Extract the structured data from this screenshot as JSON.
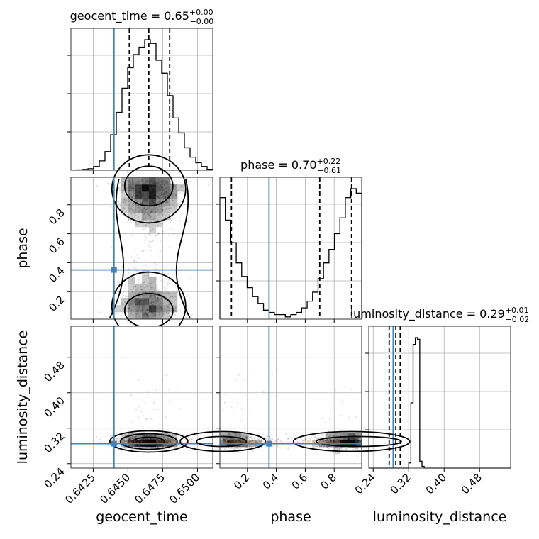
{
  "chart_data": {
    "type": "corner",
    "parameters": [
      "geocent_time",
      "phase",
      "luminosity_distance"
    ],
    "truths": {
      "geocent_time": 0.644,
      "phase": 0.35,
      "luminosity_distance": 0.285
    },
    "titles": [
      {
        "param": "geocent_time",
        "text": "geocent_time = 0.65",
        "sup": "+0.00",
        "sub": "−0.00"
      },
      {
        "param": "phase",
        "text": "phase = 0.70",
        "sup": "+0.22",
        "sub": "−0.61"
      },
      {
        "param": "luminosity_distance",
        "text": "luminosity_distance = 0.29",
        "sup": "+0.01",
        "sub": "−0.02"
      }
    ],
    "ranges": {
      "geocent_time": [
        0.6409,
        0.6511
      ],
      "phase": [
        0.01,
        0.99
      ],
      "luminosity_distance": [
        0.23,
        0.55
      ]
    },
    "ticks": {
      "geocent_time": [
        "0.6425",
        "0.6450",
        "0.6475",
        "0.6500"
      ],
      "phase": [
        "0.2",
        "0.4",
        "0.6",
        "0.8"
      ],
      "luminosity_distance": [
        "0.24",
        "0.32",
        "0.40",
        "0.48"
      ]
    },
    "quantiles": {
      "geocent_time": [
        0.6451,
        0.6465,
        0.648
      ],
      "phase": [
        0.09,
        0.7,
        0.92
      ],
      "luminosity_distance": [
        0.276,
        0.291,
        0.301
      ]
    },
    "hist1d": {
      "geocent_time": [
        0.1,
        0.2,
        0.4,
        0.8,
        2,
        5,
        10,
        19,
        31,
        44,
        55,
        62,
        66,
        70,
        68,
        59,
        52,
        40,
        28,
        20,
        12,
        7,
        4,
        2,
        0.5
      ],
      "phase": [
        54,
        44,
        34,
        25,
        19,
        14,
        10,
        7,
        4,
        3,
        2,
        2,
        1,
        2,
        3,
        5,
        8,
        12,
        18,
        25,
        31,
        38,
        45,
        54,
        58,
        56
      ],
      "luminosity_distance": [
        0,
        0,
        0,
        0,
        0,
        0,
        0,
        0,
        0,
        0,
        0,
        0,
        0,
        0,
        0,
        0,
        0,
        0,
        3,
        38,
        72,
        76,
        75,
        4,
        1,
        0,
        0,
        0,
        0,
        0,
        0,
        0,
        0,
        0,
        0,
        0,
        0,
        0,
        0,
        0,
        0,
        0,
        0,
        0,
        0,
        0,
        0,
        0,
        0,
        0,
        0,
        0,
        0,
        0,
        0,
        0,
        0,
        0,
        0,
        0,
        0,
        0,
        0,
        0
      ]
    },
    "xlabels": [
      "geocent_time",
      "phase",
      "luminosity_distance"
    ],
    "ylabels": [
      "",
      "phase",
      "luminosity_distance"
    ],
    "grid": true
  }
}
